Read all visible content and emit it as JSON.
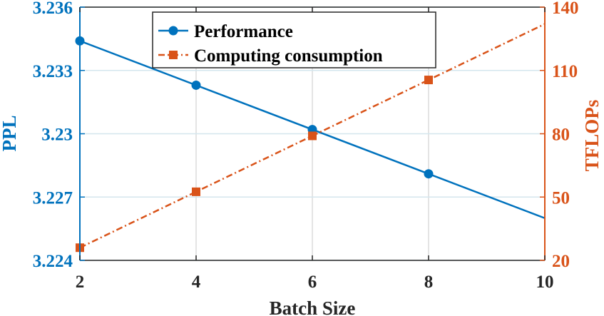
{
  "chart_data": {
    "type": "line",
    "xlabel": "Batch Size",
    "ylabel_left": "PPL",
    "ylabel_right": "TFLOPs",
    "x_ticks": [
      "2",
      "4",
      "6",
      "8",
      "10"
    ],
    "y_left_ticks": [
      "3.224",
      "3.227",
      "3.23",
      "3.233",
      "3.236"
    ],
    "y_right_ticks": [
      "20",
      "50",
      "80",
      "110",
      "140"
    ],
    "xlim": [
      2,
      10
    ],
    "ylim_left": [
      3.224,
      3.236
    ],
    "ylim_right": [
      20,
      140
    ],
    "grid": true,
    "legend_position": "top-center",
    "series": [
      {
        "name": "Performance",
        "axis": "left",
        "color": "#0072BD",
        "line_style": "solid",
        "marker": "circle",
        "x": [
          2,
          10
        ],
        "values": [
          3.2344,
          3.226
        ],
        "marker_x": [
          2,
          4,
          6,
          8
        ],
        "marker_values": [
          3.2344,
          3.2323,
          3.2302,
          3.2281
        ]
      },
      {
        "name": "Computing consumption",
        "axis": "right",
        "color": "#D95319",
        "line_style": "dash-dot",
        "marker": "square",
        "x": [
          2,
          10
        ],
        "values": [
          26,
          132
        ],
        "marker_x": [
          2,
          4,
          6,
          8
        ],
        "marker_values": [
          26,
          52.5,
          79,
          105.5
        ]
      }
    ]
  }
}
